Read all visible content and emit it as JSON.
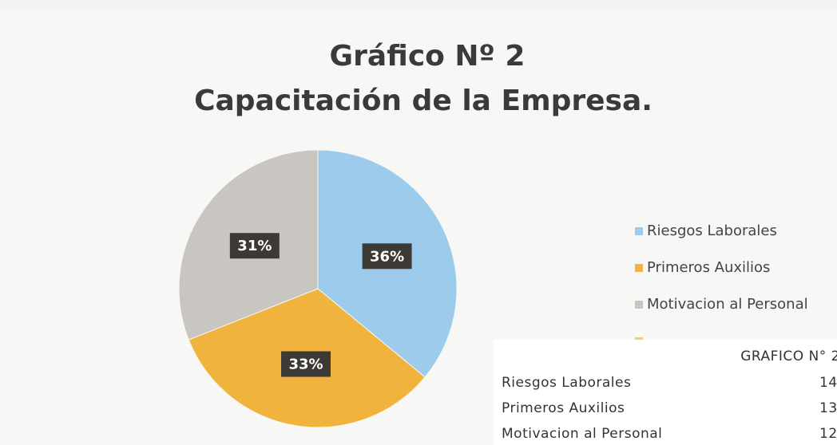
{
  "chart_data": {
    "type": "pie",
    "title": [
      "Gráfico Nº 2",
      "Capacitación de la Empresa."
    ],
    "categories": [
      "Riesgos Laborales",
      "Primeros Auxilios",
      "Motivacion al Personal",
      null
    ],
    "values": [
      36,
      33,
      31,
      null
    ],
    "value_labels": [
      "36%",
      "33%",
      "31%",
      null
    ],
    "colors": [
      "#9dcbeb",
      "#f0b33d",
      "#c9c5c1",
      "#f6d24a"
    ],
    "legend": "right"
  },
  "table": {
    "header": "GRAFICO N° 2",
    "rows": [
      [
        "Riesgos Laborales",
        14
      ],
      [
        "Primeros Auxilios",
        13
      ],
      [
        "Motivacion al Personal",
        12
      ]
    ]
  }
}
